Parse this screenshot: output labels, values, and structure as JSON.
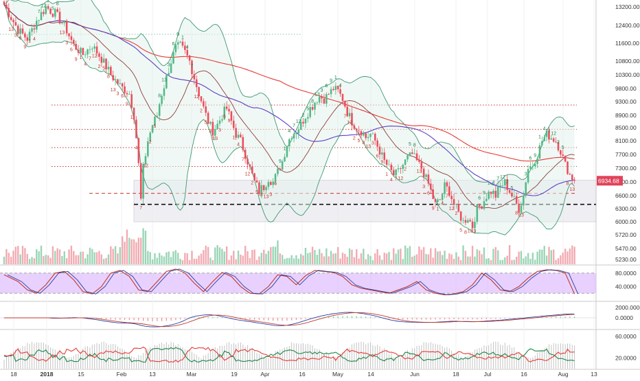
{
  "chart_data": [
    {
      "type": "candlestick",
      "title": "",
      "time_axis_labels": [
        "18",
        "2018",
        "15",
        "Feb",
        "13",
        "Mar",
        "19",
        "Apr",
        "16",
        "May",
        "14",
        "Jun",
        "18",
        "Jul",
        "16",
        "Aug",
        "13"
      ],
      "price_axis_ticks": [
        13200,
        12400,
        11600,
        10800,
        10300,
        9800,
        9300,
        8900,
        8500,
        8100,
        7700,
        7300,
        6900,
        6600,
        6300,
        6000,
        5720,
        5470,
        5230
      ],
      "price_axis_tick_labels": [
        "13200.00",
        "12400.00",
        "11600.00",
        "10800.00",
        "10300.00",
        "9800.00",
        "9300.00",
        "8900.00",
        "8500.00",
        "8100.00",
        "7700.00",
        "7300.00",
        "6900.00",
        "6600.00",
        "6300.00",
        "6000.00",
        "5720.00",
        "5470.00",
        "5230.00"
      ],
      "last_price": "6934.68",
      "last_price_value": 6934.68,
      "approx_close_path": [
        [
          0,
          13300
        ],
        [
          6,
          12200
        ],
        [
          10,
          11800
        ],
        [
          14,
          12600
        ],
        [
          18,
          13200
        ],
        [
          22,
          12900
        ],
        [
          26,
          12400
        ],
        [
          30,
          11500
        ],
        [
          34,
          11100
        ],
        [
          38,
          11500
        ],
        [
          42,
          10900
        ],
        [
          46,
          10300
        ],
        [
          50,
          9900
        ],
        [
          54,
          9600
        ],
        [
          56,
          8900
        ],
        [
          57,
          8200
        ],
        [
          58,
          7400
        ],
        [
          59,
          6500
        ],
        [
          60,
          7300
        ],
        [
          62,
          8100
        ],
        [
          64,
          8600
        ],
        [
          66,
          8900
        ],
        [
          68,
          9600
        ],
        [
          70,
          10200
        ],
        [
          72,
          10800
        ],
        [
          74,
          11400
        ],
        [
          76,
          11500
        ],
        [
          78,
          11200
        ],
        [
          80,
          10800
        ],
        [
          82,
          10200
        ],
        [
          84,
          9600
        ],
        [
          86,
          9100
        ],
        [
          88,
          8700
        ],
        [
          90,
          8400
        ],
        [
          92,
          8600
        ],
        [
          94,
          8900
        ],
        [
          96,
          9100
        ],
        [
          98,
          8700
        ],
        [
          100,
          8300
        ],
        [
          102,
          8100
        ],
        [
          104,
          7700
        ],
        [
          106,
          7300
        ],
        [
          108,
          6900
        ],
        [
          110,
          6700
        ],
        [
          112,
          6800
        ],
        [
          114,
          7000
        ],
        [
          116,
          6900
        ],
        [
          118,
          7200
        ],
        [
          120,
          7500
        ],
        [
          122,
          8000
        ],
        [
          124,
          8300
        ],
        [
          126,
          8400
        ],
        [
          128,
          8600
        ],
        [
          130,
          8900
        ],
        [
          132,
          9100
        ],
        [
          134,
          9300
        ],
        [
          136,
          9500
        ],
        [
          138,
          9400
        ],
        [
          140,
          9600
        ],
        [
          142,
          9800
        ],
        [
          144,
          9700
        ],
        [
          146,
          9400
        ],
        [
          148,
          9000
        ],
        [
          150,
          8700
        ],
        [
          152,
          8500
        ],
        [
          154,
          8400
        ],
        [
          156,
          8200
        ],
        [
          158,
          8300
        ],
        [
          160,
          8100
        ],
        [
          162,
          7800
        ],
        [
          164,
          7500
        ],
        [
          166,
          7300
        ],
        [
          168,
          7100
        ],
        [
          170,
          7200
        ],
        [
          172,
          7400
        ],
        [
          174,
          7600
        ],
        [
          176,
          7700
        ],
        [
          178,
          7500
        ],
        [
          180,
          7300
        ],
        [
          182,
          7000
        ],
        [
          184,
          6700
        ],
        [
          186,
          6400
        ],
        [
          188,
          6500
        ],
        [
          190,
          6800
        ],
        [
          192,
          6700
        ],
        [
          194,
          6400
        ],
        [
          196,
          6200
        ],
        [
          198,
          6000
        ],
        [
          200,
          6100
        ],
        [
          202,
          5900
        ],
        [
          204,
          6300
        ],
        [
          206,
          6400
        ],
        [
          208,
          6600
        ],
        [
          210,
          6700
        ],
        [
          212,
          6600
        ],
        [
          214,
          6800
        ],
        [
          216,
          6900
        ],
        [
          218,
          6700
        ],
        [
          220,
          6500
        ],
        [
          222,
          6300
        ],
        [
          224,
          6600
        ],
        [
          226,
          7300
        ],
        [
          228,
          7400
        ],
        [
          230,
          7700
        ],
        [
          232,
          8100
        ],
        [
          234,
          8300
        ],
        [
          236,
          8200
        ],
        [
          238,
          8100
        ],
        [
          240,
          7800
        ],
        [
          242,
          7400
        ],
        [
          244,
          7100
        ],
        [
          246,
          6935
        ]
      ],
      "support_resistance_levels_dotted": [
        9200,
        8450,
        7900,
        7350,
        12000
      ],
      "dashed_levels": [
        6650,
        6400
      ],
      "shaded_zone": [
        6000,
        6950
      ],
      "td_counts": [
        "1",
        "2",
        "3",
        "4",
        "5",
        "6",
        "7",
        "8",
        "9",
        "12",
        "13"
      ]
    },
    {
      "type": "line",
      "panel": "stochastic",
      "y_ticks": [
        80,
        40
      ],
      "y_tick_labels": [
        "80.0000",
        "40.0000"
      ],
      "band": [
        20,
        80
      ],
      "k_path": [
        [
          0,
          75
        ],
        [
          6,
          55
        ],
        [
          10,
          30
        ],
        [
          14,
          20
        ],
        [
          18,
          45
        ],
        [
          22,
          80
        ],
        [
          26,
          85
        ],
        [
          30,
          60
        ],
        [
          34,
          25
        ],
        [
          38,
          18
        ],
        [
          42,
          40
        ],
        [
          46,
          80
        ],
        [
          50,
          88
        ],
        [
          54,
          70
        ],
        [
          58,
          30
        ],
        [
          62,
          25
        ],
        [
          66,
          55
        ],
        [
          70,
          85
        ],
        [
          74,
          92
        ],
        [
          78,
          80
        ],
        [
          82,
          50
        ],
        [
          86,
          25
        ],
        [
          90,
          55
        ],
        [
          94,
          82
        ],
        [
          98,
          70
        ],
        [
          102,
          40
        ],
        [
          106,
          20
        ],
        [
          110,
          18
        ],
        [
          114,
          40
        ],
        [
          118,
          75
        ],
        [
          122,
          70
        ],
        [
          126,
          45
        ],
        [
          130,
          72
        ],
        [
          134,
          88
        ],
        [
          138,
          85
        ],
        [
          142,
          82
        ],
        [
          146,
          70
        ],
        [
          150,
          45
        ],
        [
          154,
          35
        ],
        [
          158,
          30
        ],
        [
          162,
          25
        ],
        [
          166,
          20
        ],
        [
          170,
          30
        ],
        [
          174,
          40
        ],
        [
          178,
          55
        ],
        [
          182,
          30
        ],
        [
          186,
          20
        ],
        [
          190,
          15
        ],
        [
          194,
          18
        ],
        [
          198,
          25
        ],
        [
          202,
          45
        ],
        [
          206,
          80
        ],
        [
          210,
          60
        ],
        [
          214,
          30
        ],
        [
          218,
          25
        ],
        [
          222,
          40
        ],
        [
          226,
          65
        ],
        [
          230,
          85
        ],
        [
          234,
          90
        ],
        [
          238,
          88
        ],
        [
          242,
          80
        ],
        [
          246,
          18
        ]
      ]
    },
    {
      "type": "line",
      "panel": "macd",
      "y_ticks": [
        2000,
        0
      ],
      "y_tick_labels": [
        "2000.0000",
        "0.0000"
      ]
    },
    {
      "type": "bar",
      "panel": "adx_dmi",
      "y_ticks": [
        60,
        20
      ],
      "y_tick_labels": [
        "60.0000",
        "20.0000"
      ]
    }
  ],
  "colors": {
    "up": "#53b987",
    "down": "#eb4d5c",
    "sma_red": "#e53935",
    "sma_purple": "#5b3fc4",
    "sma_brown": "#8d3b3b",
    "bollinger": "#3d9970",
    "stoch_fill": "#d9b3ff",
    "price_badge": "#e0435a"
  }
}
